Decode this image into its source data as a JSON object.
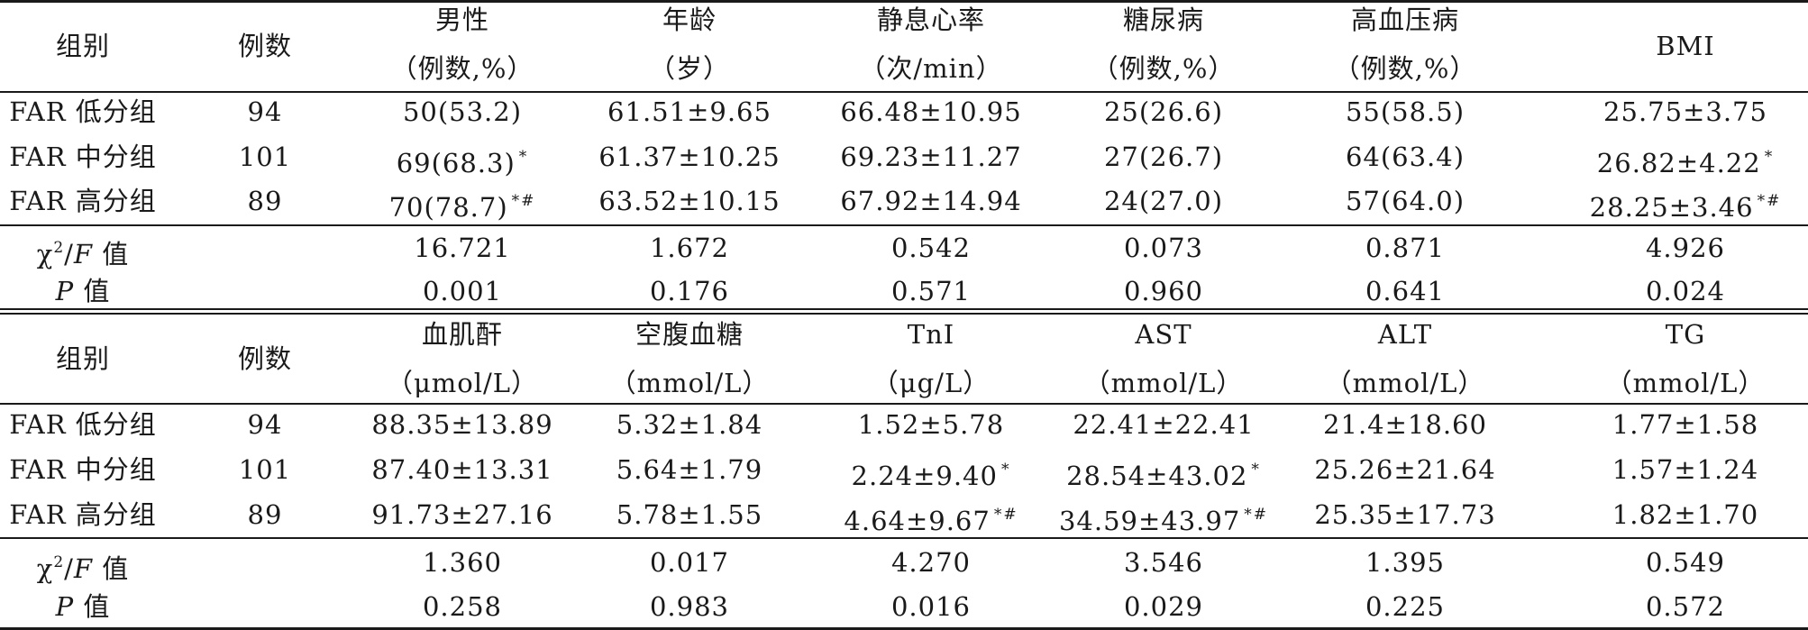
{
  "section1": {
    "headers": [
      {
        "line1": "组别",
        "line2": ""
      },
      {
        "line1": "例数",
        "line2": ""
      },
      {
        "line1": "男性",
        "line2": "（例数,%）"
      },
      {
        "line1": "年龄",
        "line2": "（岁）"
      },
      {
        "line1": "静息心率",
        "line2": "（次/min）"
      },
      {
        "line1": "糖尿病",
        "line2": "（例数,%）"
      },
      {
        "line1": "高血压病",
        "line2": "（例数,%）"
      },
      {
        "line1": "BMI",
        "line2": ""
      }
    ],
    "rows": [
      [
        "FAR 低分组",
        "94",
        "50(53.2)",
        "61.51±9.65",
        "66.48±10.95",
        "25(26.6)",
        "55(58.5)",
        "25.75±3.75"
      ],
      [
        "FAR 中分组",
        "101",
        "69(68.3)",
        "61.37±10.25",
        "69.23±11.27",
        "27(26.7)",
        "64(63.4)",
        "26.82±4.22"
      ],
      [
        "FAR 高分组",
        "89",
        "70(78.7)",
        "63.52±10.15",
        "67.92±14.94",
        "24(27.0)",
        "57(64.0)",
        "28.25±3.46"
      ]
    ],
    "marks": [
      [
        "",
        "",
        "",
        "",
        "",
        "",
        "",
        ""
      ],
      [
        "",
        "",
        "*",
        "",
        "",
        "",
        "",
        "*"
      ],
      [
        "",
        "",
        "*#",
        "",
        "",
        "",
        "",
        "*#"
      ]
    ],
    "stats": [
      [
        "χ",
        "16.721",
        "1.672",
        "0.542",
        "0.073",
        "0.871",
        "4.926"
      ],
      [
        "P",
        "0.001",
        "0.176",
        "0.571",
        "0.960",
        "0.641",
        "0.024"
      ]
    ]
  },
  "section2": {
    "headers": [
      {
        "line1": "组别",
        "line2": ""
      },
      {
        "line1": "例数",
        "line2": ""
      },
      {
        "line1": "血肌酐",
        "line2": "（μmol/L）"
      },
      {
        "line1": "空腹血糖",
        "line2": "（mmol/L）"
      },
      {
        "line1": "TnI",
        "line2": "（μg/L）"
      },
      {
        "line1": "AST",
        "line2": "（mmol/L）"
      },
      {
        "line1": "ALT",
        "line2": "（mmol/L）"
      },
      {
        "line1": "TG",
        "line2": "（mmol/L）"
      }
    ],
    "rows": [
      [
        "FAR 低分组",
        "94",
        "88.35±13.89",
        "5.32±1.84",
        "1.52±5.78",
        "22.41±22.41",
        "21.4±18.60",
        "1.77±1.58"
      ],
      [
        "FAR 中分组",
        "101",
        "87.40±13.31",
        "5.64±1.79",
        "2.24±9.40",
        "28.54±43.02",
        "25.26±21.64",
        "1.57±1.24"
      ],
      [
        "FAR 高分组",
        "89",
        "91.73±27.16",
        "5.78±1.55",
        "4.64±9.67",
        "34.59±43.97",
        "25.35±17.73",
        "1.82±1.70"
      ]
    ],
    "marks": [
      [
        "",
        "",
        "",
        "",
        "",
        "",
        "",
        ""
      ],
      [
        "",
        "",
        "",
        "",
        "*",
        "*",
        "",
        ""
      ],
      [
        "",
        "",
        "",
        "",
        "*#",
        "*#",
        "",
        ""
      ]
    ],
    "stats": [
      [
        "χ",
        "1.360",
        "0.017",
        "4.270",
        "3.546",
        "1.395",
        "0.549"
      ],
      [
        "P",
        "0.258",
        "0.983",
        "0.016",
        "0.029",
        "0.225",
        "0.572"
      ]
    ]
  },
  "stat_labels": {
    "chi_sup": "2",
    "chi_rest": "/F 值",
    "chi_f": "F",
    "chi_tail": " 值",
    "p_tail": " 值"
  }
}
